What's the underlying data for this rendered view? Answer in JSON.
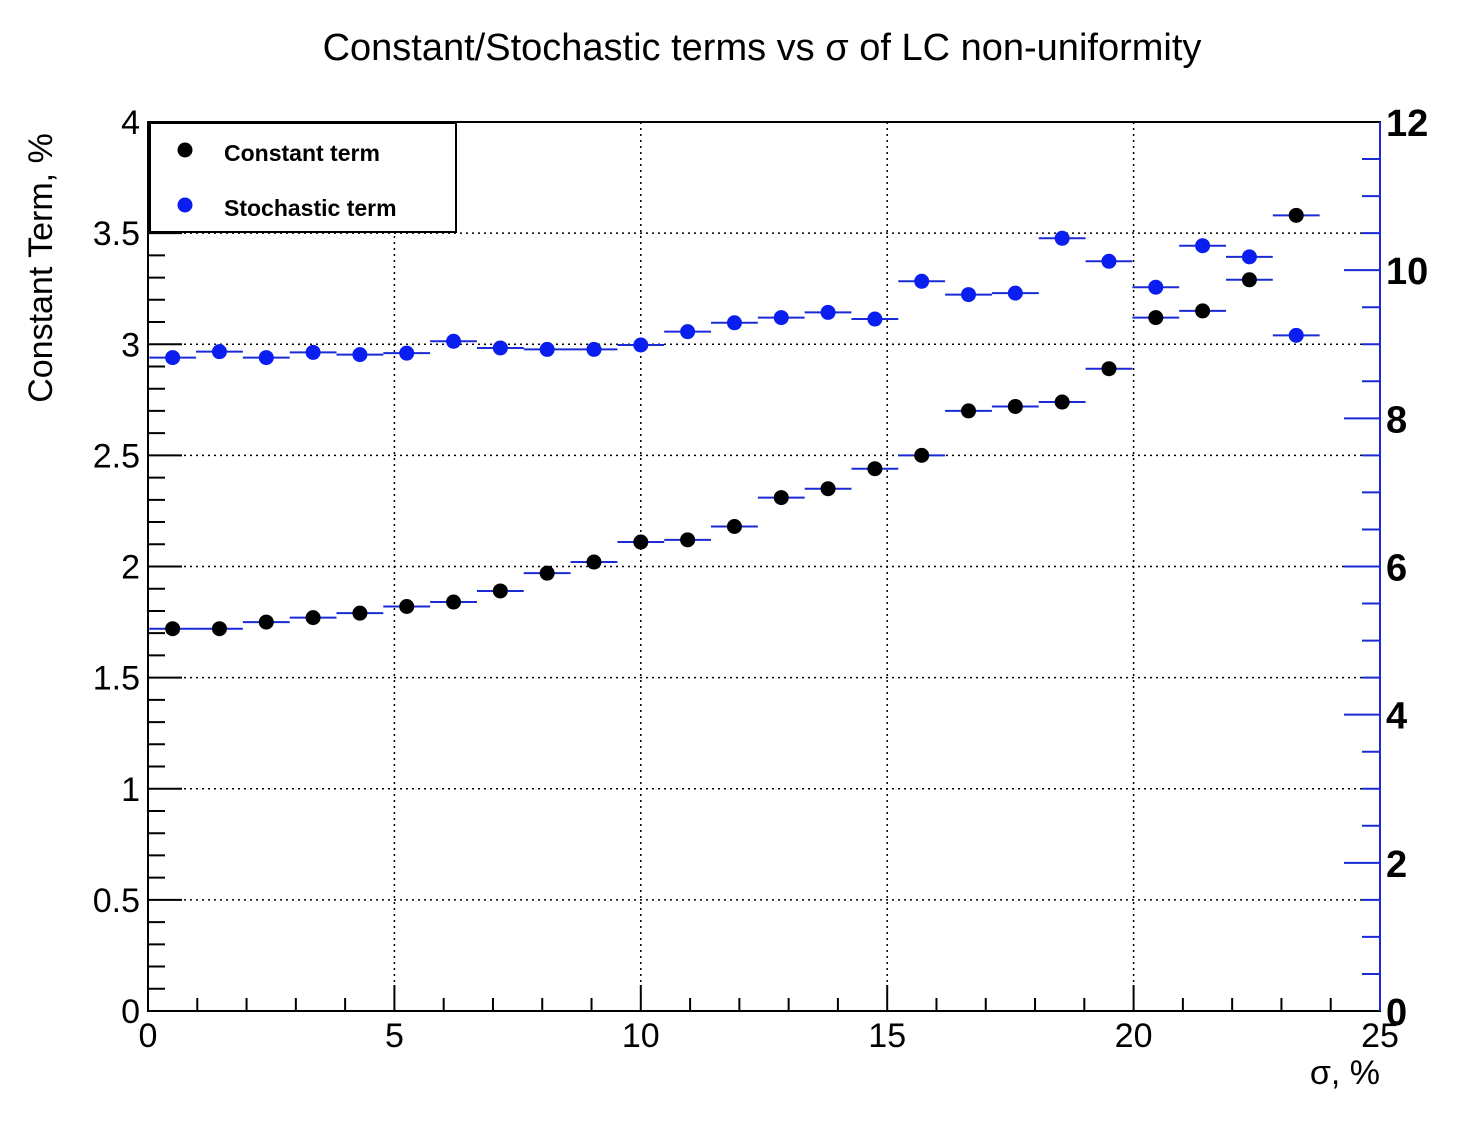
{
  "chart_data": {
    "type": "scatter",
    "title": "Constant/Stochastic terms vs σ of LC non-uniformity",
    "xlabel": "σ, %",
    "ylabel": "Constant Term, %",
    "xlim": [
      0,
      25
    ],
    "ylim": [
      0,
      4
    ],
    "y2lim": [
      0,
      12
    ],
    "grid": true,
    "legend_position": "top-left",
    "x_ticks": [
      "0",
      "5",
      "10",
      "15",
      "20",
      "25"
    ],
    "y_ticks": [
      "0",
      "0.5",
      "1",
      "1.5",
      "2",
      "2.5",
      "3",
      "3.5",
      "4"
    ],
    "y2_ticks": [
      "0",
      "2",
      "4",
      "6",
      "8",
      "10",
      "12"
    ],
    "bin_width": 0.95,
    "series": [
      {
        "name": "Constant term",
        "axis": "left",
        "color": "#000000",
        "x": [
          0.5,
          1.45,
          2.4,
          3.35,
          4.3,
          5.25,
          6.2,
          7.15,
          8.1,
          9.05,
          10.0,
          10.95,
          11.9,
          12.85,
          13.8,
          14.75,
          15.7,
          16.65,
          17.6,
          18.55,
          19.5,
          20.45,
          21.4,
          22.35,
          23.3
        ],
        "y": [
          1.72,
          1.72,
          1.75,
          1.77,
          1.79,
          1.82,
          1.84,
          1.89,
          1.97,
          2.02,
          2.11,
          2.12,
          2.18,
          2.31,
          2.35,
          2.44,
          2.5,
          2.7,
          2.72,
          2.74,
          2.89,
          3.12,
          3.15,
          3.29,
          3.58
        ]
      },
      {
        "name": "Stochastic term",
        "axis": "right",
        "color": "#0a1ef0",
        "x": [
          0.5,
          1.45,
          2.4,
          3.35,
          4.3,
          5.25,
          6.2,
          7.15,
          8.1,
          9.05,
          10.0,
          10.95,
          11.9,
          12.85,
          13.8,
          14.75,
          15.7,
          16.65,
          17.6,
          18.55,
          19.5,
          20.45,
          21.4,
          22.35,
          23.3
        ],
        "y": [
          8.82,
          8.9,
          8.82,
          8.89,
          8.86,
          8.88,
          9.04,
          8.95,
          8.93,
          8.93,
          8.99,
          9.17,
          9.29,
          9.36,
          9.43,
          9.34,
          9.85,
          9.67,
          9.69,
          10.43,
          10.12,
          9.77,
          10.33,
          10.18,
          9.12
        ]
      }
    ]
  }
}
